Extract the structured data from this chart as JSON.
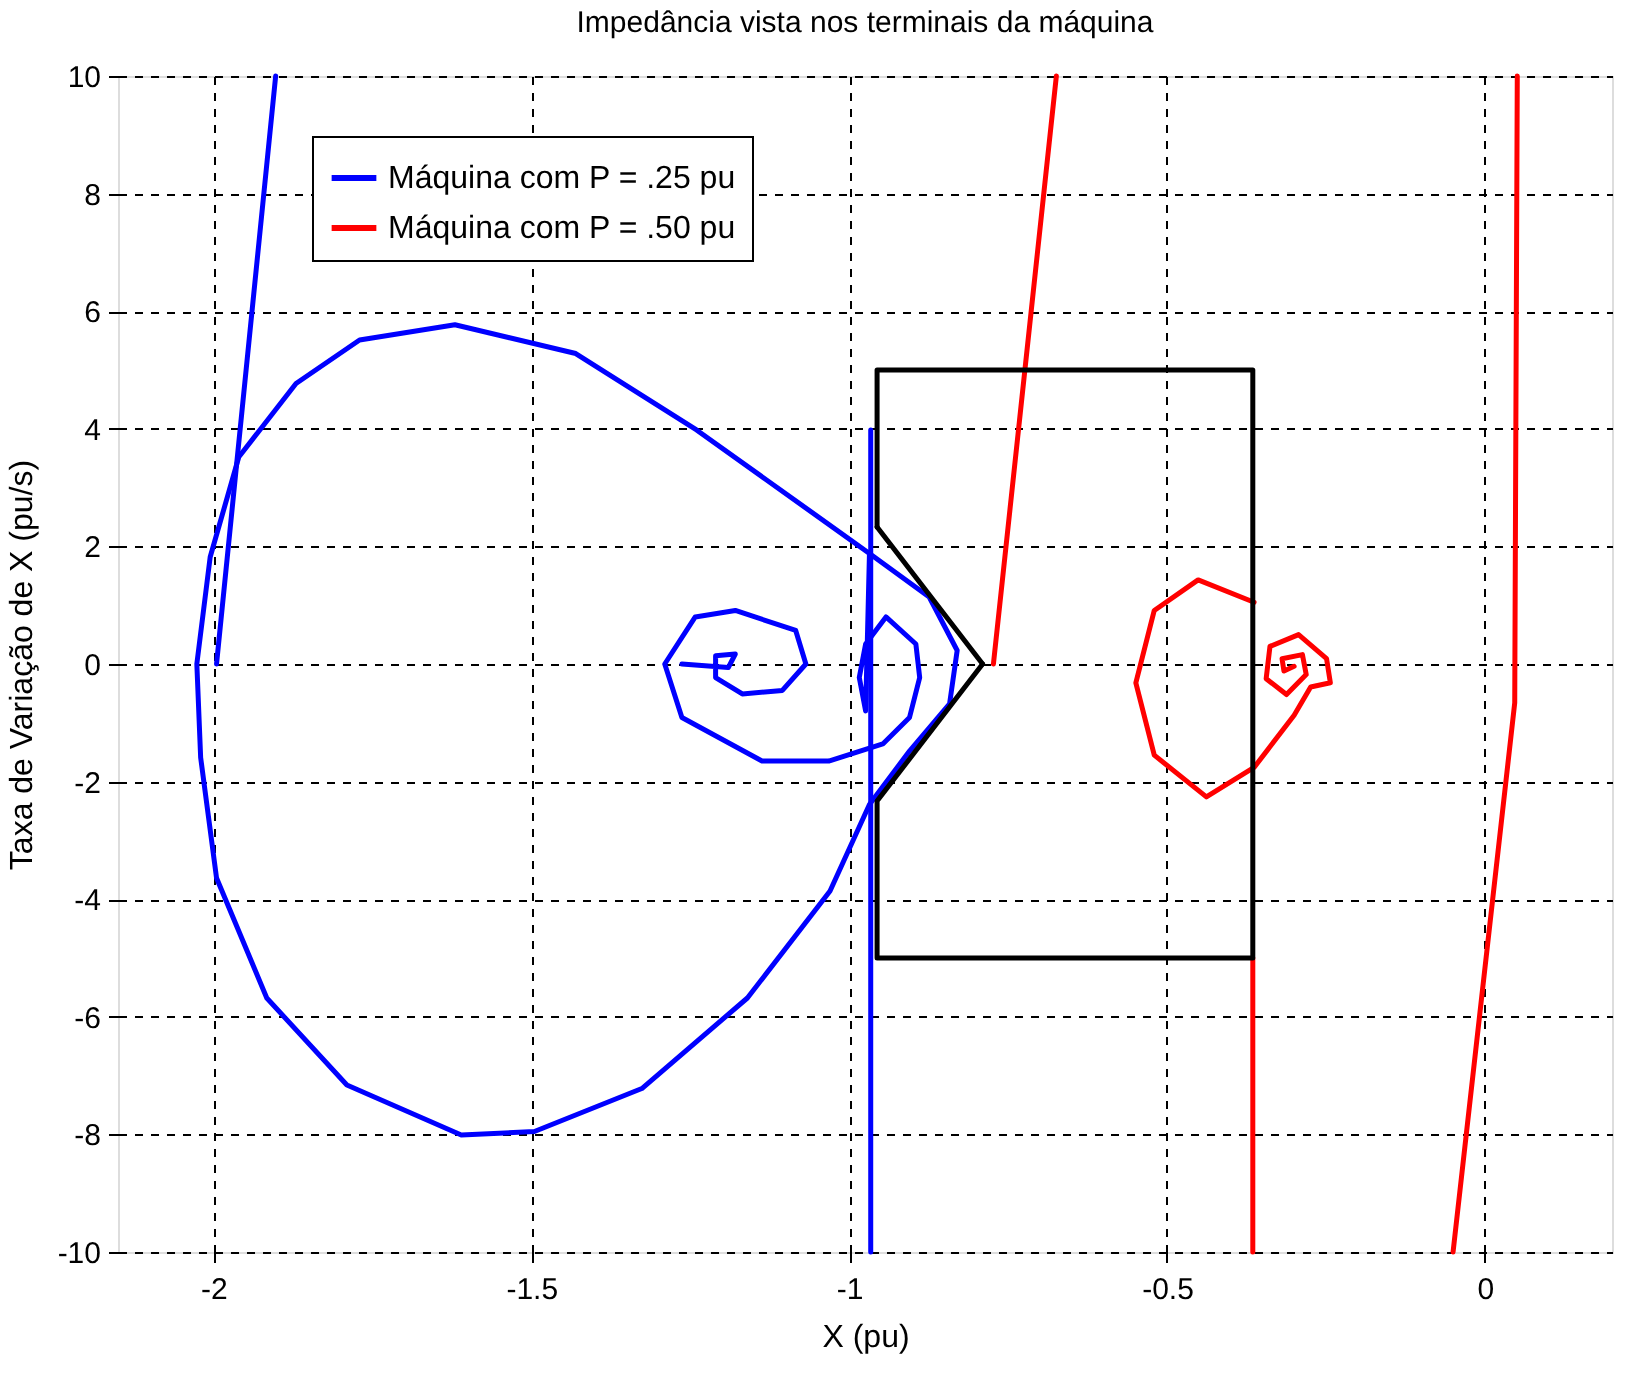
{
  "chart_data": {
    "type": "line",
    "title": "Impedância vista nos terminais da máquina",
    "xlabel": "X (pu)",
    "ylabel": "Taxa de Variação de X (pu/s)",
    "xlim": [
      -2.15,
      0.2
    ],
    "ylim": [
      -10,
      10
    ],
    "xticks": [
      -2,
      -1.5,
      -1,
      -0.5,
      0
    ],
    "yticks": [
      -10,
      -8,
      -6,
      -4,
      -2,
      0,
      2,
      4,
      6,
      8,
      10
    ],
    "grid": true,
    "legend": "top left",
    "line_style": "solid",
    "series": [
      {
        "name": "Máquina com P = .25 pu",
        "color": "#0000ff",
        "x": [
          -1.902,
          -1.995,
          null,
          -0.968,
          -1.24,
          -1.43,
          -1.62,
          -1.77,
          -1.87,
          -1.96,
          -2.005,
          -2.026,
          -2.02,
          -1.995,
          -1.916,
          -1.79,
          -1.61,
          -1.495,
          -1.326,
          -1.16,
          -1.03,
          -0.968,
          -0.905,
          -0.842,
          -0.83,
          -0.874,
          -0.968,
          -0.974,
          -0.984,
          -0.974,
          -0.942,
          -0.895,
          -0.889,
          -0.905,
          -0.947,
          -1.032,
          -1.137,
          -1.263,
          -1.29,
          -1.242,
          -1.179,
          -1.084,
          -1.068,
          -1.105,
          -1.168,
          -1.21,
          -1.21,
          -1.179,
          -1.19,
          -1.263,
          null,
          -0.966,
          -0.966
        ],
        "values": [
          10,
          0,
          null,
          1.88,
          3.98,
          5.28,
          5.77,
          5.51,
          4.77,
          3.52,
          1.82,
          0,
          -1.59,
          -3.64,
          -5.68,
          -7.16,
          -8.01,
          -7.95,
          -7.22,
          -5.68,
          -3.86,
          -2.39,
          -1.48,
          -0.68,
          0.23,
          1.14,
          1.88,
          -0.8,
          -0.23,
          0.34,
          0.8,
          0.34,
          -0.23,
          -0.91,
          -1.36,
          -1.65,
          -1.65,
          -0.91,
          0,
          0.8,
          0.91,
          0.57,
          0,
          -0.45,
          -0.51,
          -0.23,
          0.14,
          0.17,
          -0.06,
          0,
          null,
          3.98,
          -10
        ]
      },
      {
        "name": "Máquina com P = .50 pu",
        "color": "#ff0000",
        "x": [
          -0.674,
          -0.773,
          null,
          -0.363,
          -0.451,
          -0.52,
          -0.549,
          -0.52,
          -0.438,
          -0.363,
          -0.3,
          -0.274,
          -0.243,
          -0.249,
          -0.293,
          -0.338,
          -0.344,
          -0.312,
          -0.281,
          -0.287,
          -0.319,
          -0.316,
          -0.3,
          null,
          -0.365,
          -0.365,
          null,
          0.051,
          0.047,
          -0.05
        ],
        "values": [
          10,
          0,
          null,
          1.05,
          1.43,
          0.91,
          -0.32,
          -1.55,
          -2.26,
          -1.76,
          -0.87,
          -0.39,
          -0.32,
          0.09,
          0.5,
          0.3,
          -0.25,
          -0.52,
          -0.18,
          0.16,
          0.09,
          -0.12,
          -0.04,
          null,
          -5,
          -10,
          null,
          10,
          -0.66,
          -10
        ]
      },
      {
        "color": "#000000",
        "x": [
          -0.956,
          -0.956,
          -0.365,
          -0.365,
          -0.956,
          -0.956,
          -0.79,
          null,
          -0.79,
          -0.956
        ],
        "values": [
          2.33,
          5.0,
          5.0,
          -5.0,
          -5.0,
          -2.33,
          0,
          null,
          0,
          2.33
        ]
      }
    ]
  }
}
